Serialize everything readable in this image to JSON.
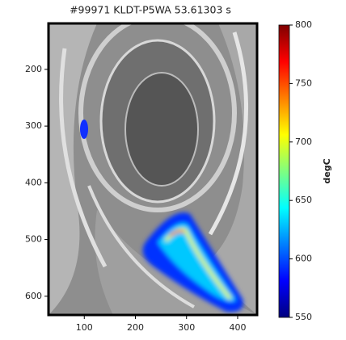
{
  "chart_data": {
    "type": "image",
    "title": "#99971 KLDT-P5WA 53.61303 s",
    "xlim": [
      30,
      438
    ],
    "xticks": [
      100,
      200,
      300,
      400
    ],
    "ylim": [
      633,
      119
    ],
    "yticks": [
      200,
      300,
      400,
      500,
      600
    ],
    "colorbar": {
      "label": "degC",
      "lim": [
        550,
        800
      ],
      "ticks": [
        550,
        600,
        650,
        700,
        750,
        800
      ],
      "colormap": "jet"
    }
  }
}
